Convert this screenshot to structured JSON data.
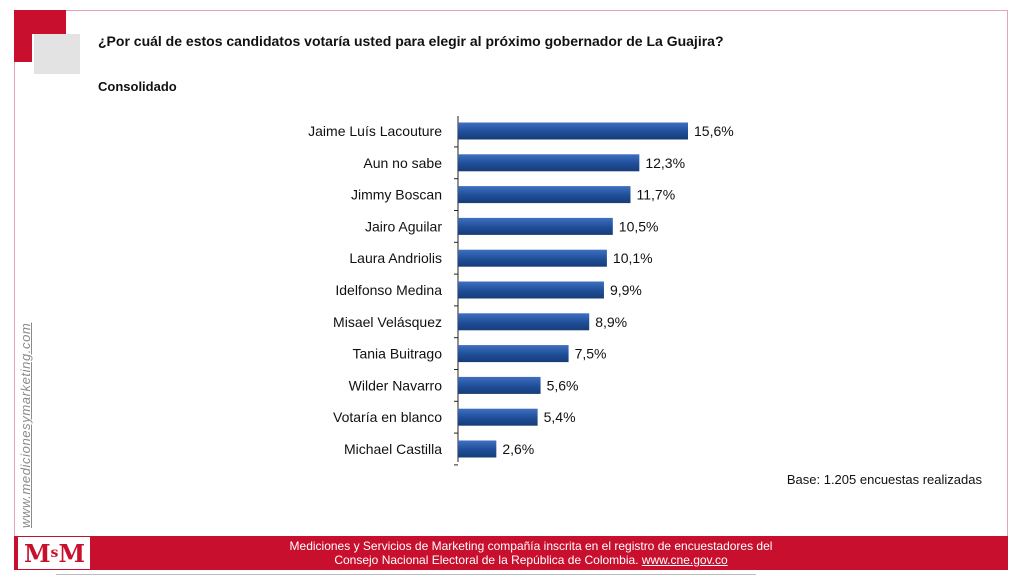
{
  "header": {
    "question": "¿Por cuál de estos candidatos votaría usted para elegir al próximo gobernador de La Guajira?",
    "subtitle": "Consolidado"
  },
  "watermark": "www.medicionesymarketing.com",
  "base_note": "Base: 1.205 encuestas realizadas",
  "footer": {
    "line1": "Mediciones y Servicios de Marketing compañía inscrita en el registro de encuestadores del",
    "line2_text": "Consejo Nacional Electoral  de la República de Colombia. ",
    "line2_link": "www.cne.gov.co"
  },
  "logo": {
    "m1": "M",
    "s": "s",
    "m2": "M"
  },
  "colors": {
    "bar": "#1f4e98",
    "bar_light": "#3f6fc0",
    "accent": "#c8102e"
  },
  "chart_data": {
    "type": "bar",
    "orientation": "horizontal",
    "categories": [
      "Jaime Luís Lacouture",
      "Aun no sabe",
      "Jimmy Boscan",
      "Jairo Aguilar",
      "Laura Andriolis",
      "Idelfonso Medina",
      "Misael Velásquez",
      "Tania Buitrago",
      "Wilder Navarro",
      "Votaría en blanco",
      "Michael Castilla"
    ],
    "values": [
      15.6,
      12.3,
      11.7,
      10.5,
      10.1,
      9.9,
      8.9,
      7.5,
      5.6,
      5.4,
      2.6
    ],
    "labels": [
      "15,6%",
      "12,3%",
      "11,7%",
      "10,5%",
      "10,1%",
      "9,9%",
      "8,9%",
      "7,5%",
      "5,6%",
      "5,4%",
      "2,6%"
    ],
    "title": "",
    "xlabel": "",
    "ylabel": "",
    "xlim": [
      0,
      15.6
    ],
    "grid": false
  }
}
